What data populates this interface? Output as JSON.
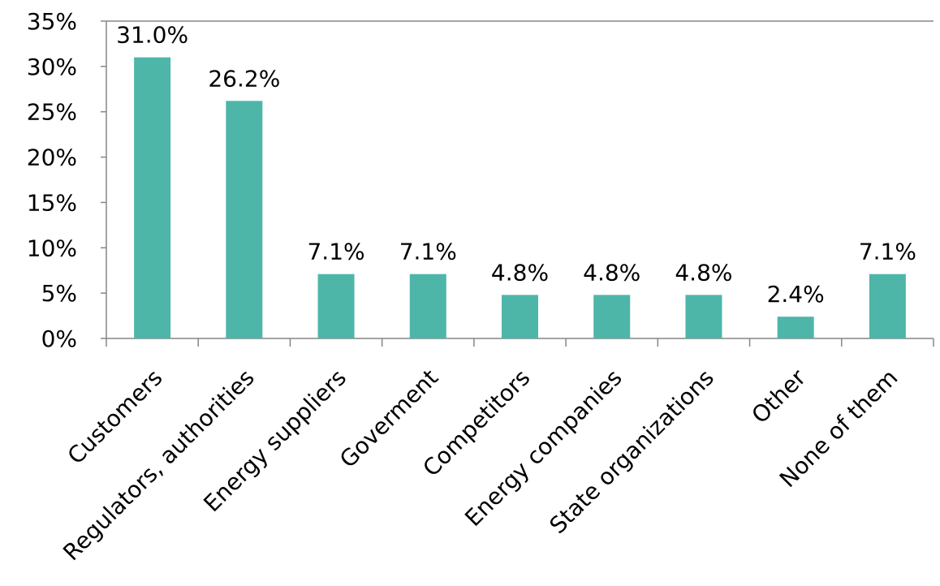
{
  "chart_data": {
    "type": "bar",
    "categories": [
      "Customers",
      "Regulators, authorities",
      "Energy suppliers",
      "Goverment",
      "Competitors",
      "Energy companies",
      "State organizations",
      "Other",
      "None of them"
    ],
    "values": [
      31.0,
      26.2,
      7.1,
      7.1,
      4.8,
      4.8,
      4.8,
      2.4,
      7.1
    ],
    "data_labels": [
      "31.0%",
      "26.2%",
      "7.1%",
      "7.1%",
      "4.8%",
      "4.8%",
      "4.8%",
      "2.4%",
      "7.1%"
    ],
    "y_ticks": [
      0,
      5,
      10,
      15,
      20,
      25,
      30,
      35
    ],
    "y_tick_labels": [
      "0%",
      "5%",
      "10%",
      "15%",
      "20%",
      "25%",
      "30%",
      "35%"
    ],
    "ylim": [
      0,
      35
    ],
    "grid": false,
    "legend": "none",
    "bar_color": "#4db6a9"
  }
}
